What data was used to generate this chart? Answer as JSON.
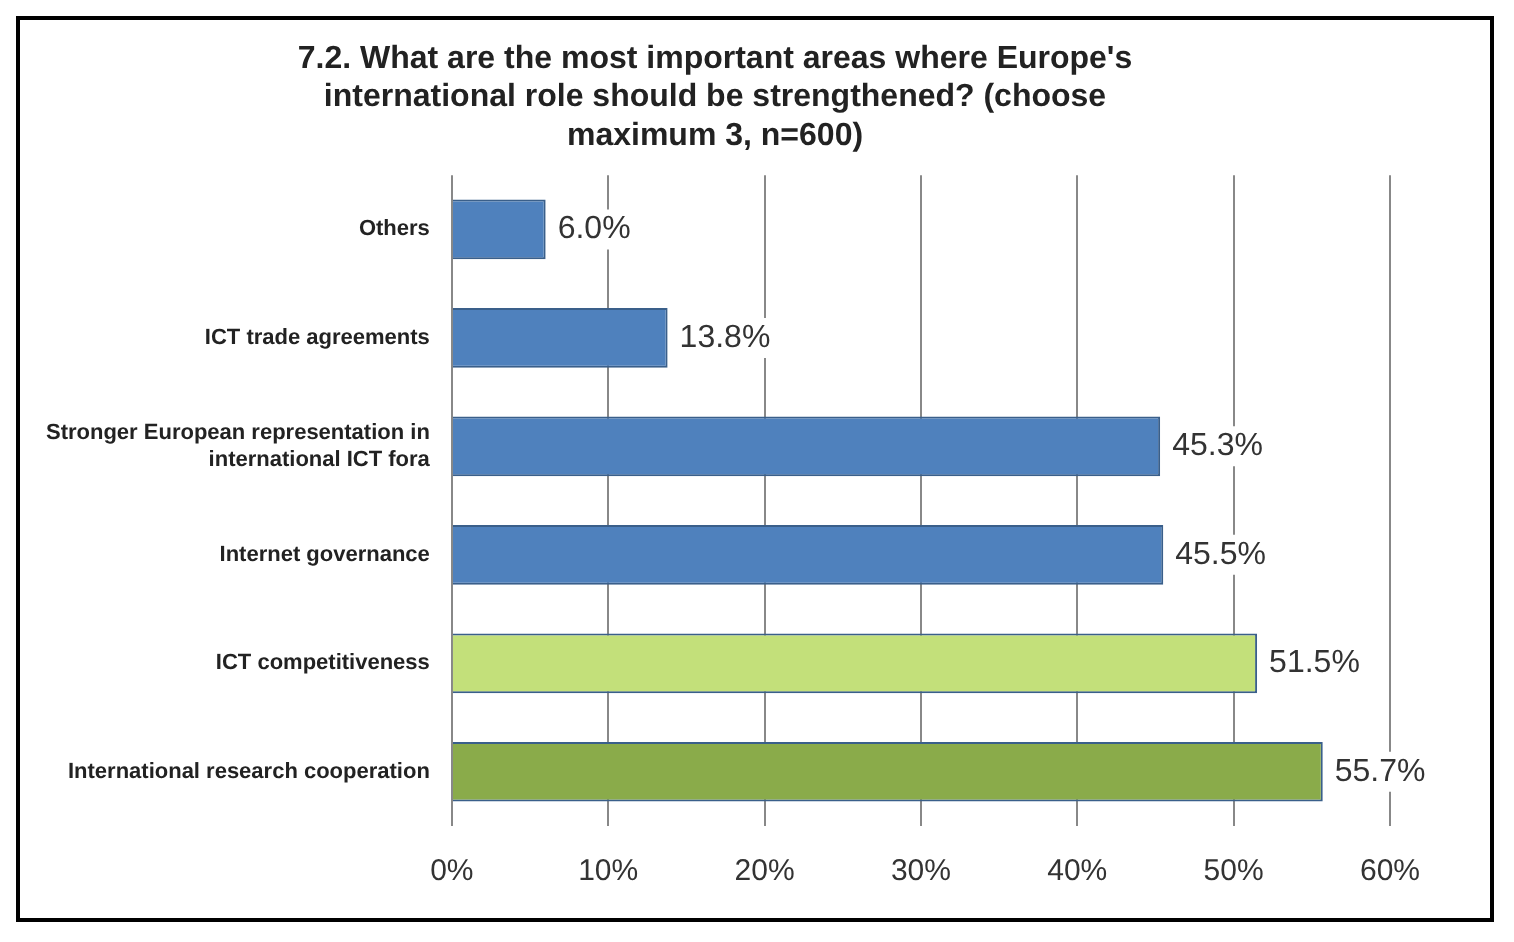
{
  "chart_data": {
    "type": "bar",
    "orientation": "horizontal",
    "title": "7.2. What are the most important areas where Europe's international role should be strengthened? (choose maximum 3, n=600)",
    "categories": [
      "Others",
      "ICT trade agreements",
      "Stronger European representation in international ICT fora",
      "Internet governance",
      "ICT competitiveness",
      "International research cooperation"
    ],
    "values": [
      6.0,
      13.8,
      45.3,
      45.5,
      51.5,
      55.7
    ],
    "colors": [
      "#4f81bd",
      "#4f81bd",
      "#4f81bd",
      "#4f81bd",
      "#c3e07a",
      "#8aab4a"
    ],
    "value_labels": [
      "6.0%",
      "13.8%",
      "45.3%",
      "45.5%",
      "51.5%",
      "55.7%"
    ],
    "xlim": [
      0,
      60
    ],
    "xticks": [
      {
        "value": 0,
        "label": "0%"
      },
      {
        "value": 10,
        "label": "10%"
      },
      {
        "value": 20,
        "label": "20%"
      },
      {
        "value": 30,
        "label": "30%"
      },
      {
        "value": 40,
        "label": "40%"
      },
      {
        "value": 50,
        "label": "50%"
      },
      {
        "value": 60,
        "label": "60%"
      }
    ],
    "grid": "x",
    "legend": false
  }
}
